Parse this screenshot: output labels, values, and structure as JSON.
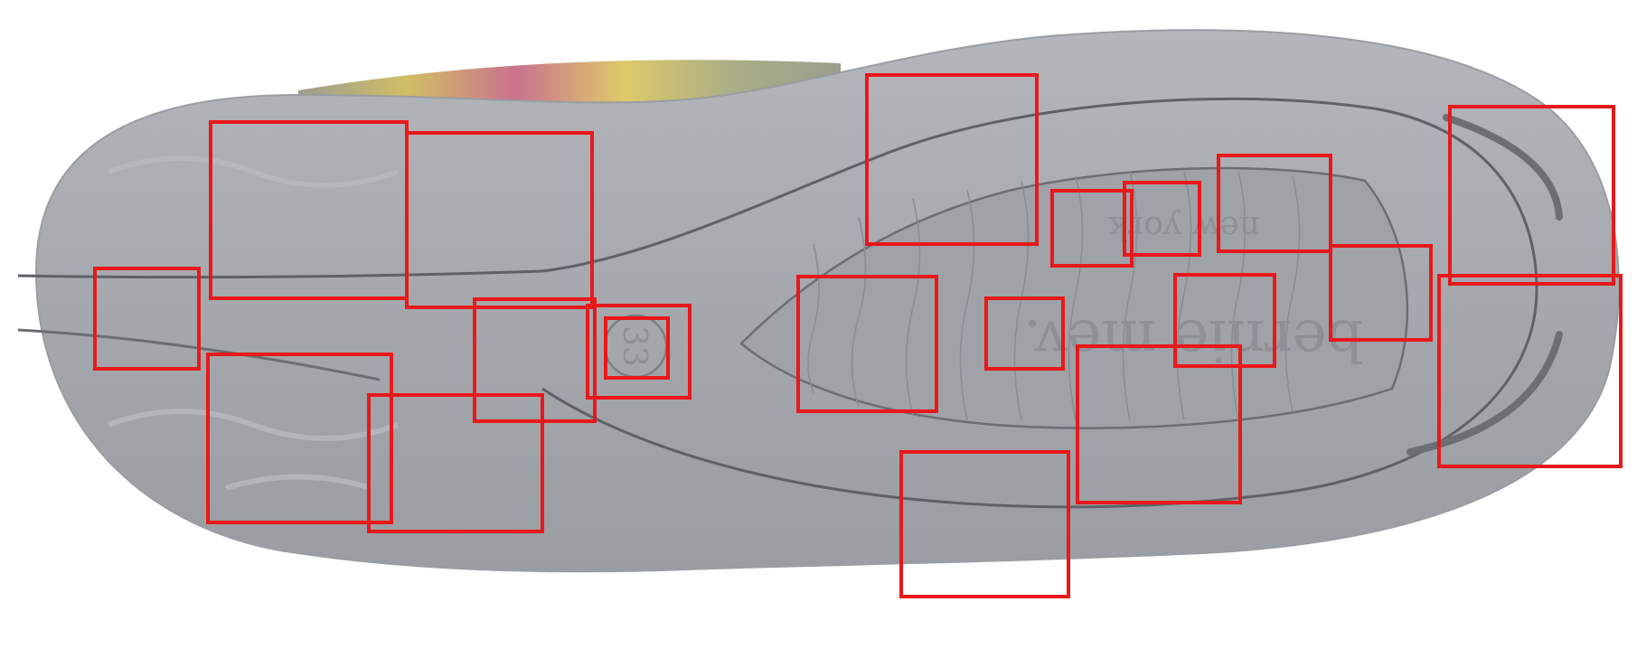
{
  "image": {
    "subject": "shoe-outsole",
    "colors": {
      "background": "#ffffff",
      "sole": "#a7aaae",
      "sole_shadow": "#8d9094",
      "outline": "#5e6166",
      "box_stroke": "#e8181b"
    }
  },
  "sole_text": {
    "brand": "bernie mev.",
    "city": "new york",
    "size": "33"
  },
  "annotation_boxes": [
    {
      "id": "box-1"
    },
    {
      "id": "box-2"
    },
    {
      "id": "box-3"
    },
    {
      "id": "box-4"
    },
    {
      "id": "box-5"
    },
    {
      "id": "box-6"
    },
    {
      "id": "box-7"
    },
    {
      "id": "box-8"
    },
    {
      "id": "box-9"
    },
    {
      "id": "box-10"
    },
    {
      "id": "box-11"
    },
    {
      "id": "box-12"
    },
    {
      "id": "box-13"
    },
    {
      "id": "box-14"
    },
    {
      "id": "box-15"
    },
    {
      "id": "box-16"
    },
    {
      "id": "box-17"
    },
    {
      "id": "box-18"
    },
    {
      "id": "box-19"
    },
    {
      "id": "box-20"
    },
    {
      "id": "box-21"
    }
  ]
}
